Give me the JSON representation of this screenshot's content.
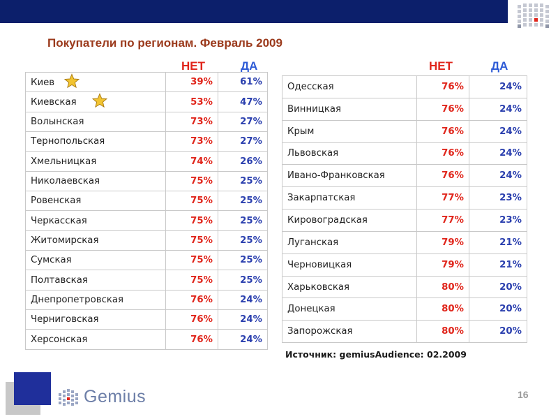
{
  "title": "Покупатели по регионам. Февраль 2009",
  "headers": {
    "no": "НЕТ",
    "yes": "ДА"
  },
  "left_table": [
    {
      "region": "Киев",
      "no": "39%",
      "yes": "61%"
    },
    {
      "region": "Киевская",
      "no": "53%",
      "yes": "47%"
    },
    {
      "region": "Волынская",
      "no": "73%",
      "yes": "27%"
    },
    {
      "region": "Тернопольская",
      "no": "73%",
      "yes": "27%"
    },
    {
      "region": "Хмельницкая",
      "no": "74%",
      "yes": "26%"
    },
    {
      "region": "Николаевская",
      "no": "75%",
      "yes": "25%"
    },
    {
      "region": "Ровенская",
      "no": "75%",
      "yes": "25%"
    },
    {
      "region": "Черкасская",
      "no": "75%",
      "yes": "25%"
    },
    {
      "region": "Житомирская",
      "no": "75%",
      "yes": "25%"
    },
    {
      "region": "Сумская",
      "no": "75%",
      "yes": "25%"
    },
    {
      "region": "Полтавская",
      "no": "75%",
      "yes": "25%"
    },
    {
      "region": "Днепропетровская",
      "no": "76%",
      "yes": "24%"
    },
    {
      "region": "Черниговская",
      "no": "76%",
      "yes": "24%"
    },
    {
      "region": "Херсонская",
      "no": "76%",
      "yes": "24%"
    }
  ],
  "right_table": [
    {
      "region": "Одесская",
      "no": "76%",
      "yes": "24%"
    },
    {
      "region": "Винницкая",
      "no": "76%",
      "yes": "24%"
    },
    {
      "region": "Крым",
      "no": "76%",
      "yes": "24%"
    },
    {
      "region": "Львовская",
      "no": "76%",
      "yes": "24%"
    },
    {
      "region": "Ивано-Франковская",
      "no": "76%",
      "yes": "24%"
    },
    {
      "region": "Закарпатская",
      "no": "77%",
      "yes": "23%"
    },
    {
      "region": "Кировоградская",
      "no": "77%",
      "yes": "23%"
    },
    {
      "region": "Луганская",
      "no": "79%",
      "yes": "21%"
    },
    {
      "region": "Черновицкая",
      "no": "79%",
      "yes": "21%"
    },
    {
      "region": "Харьковская",
      "no": "80%",
      "yes": "20%"
    },
    {
      "region": "Донецкая",
      "no": "80%",
      "yes": "20%"
    },
    {
      "region": "Запорожская",
      "no": "80%",
      "yes": "20%"
    }
  ],
  "star_regions": [
    "Киев",
    "Киевская"
  ],
  "source": "Источник: gemiusAudience: 02.2009",
  "brand": "Gemius",
  "page_number": "16",
  "colors": {
    "top_bar": "#0c1f6b",
    "title": "#9b3a1c",
    "no": "#e0251b",
    "yes_header": "#2e5bd6",
    "yes_values": "#2a3fae"
  },
  "icons": [
    "star-icon",
    "gemius-logo-icon"
  ]
}
